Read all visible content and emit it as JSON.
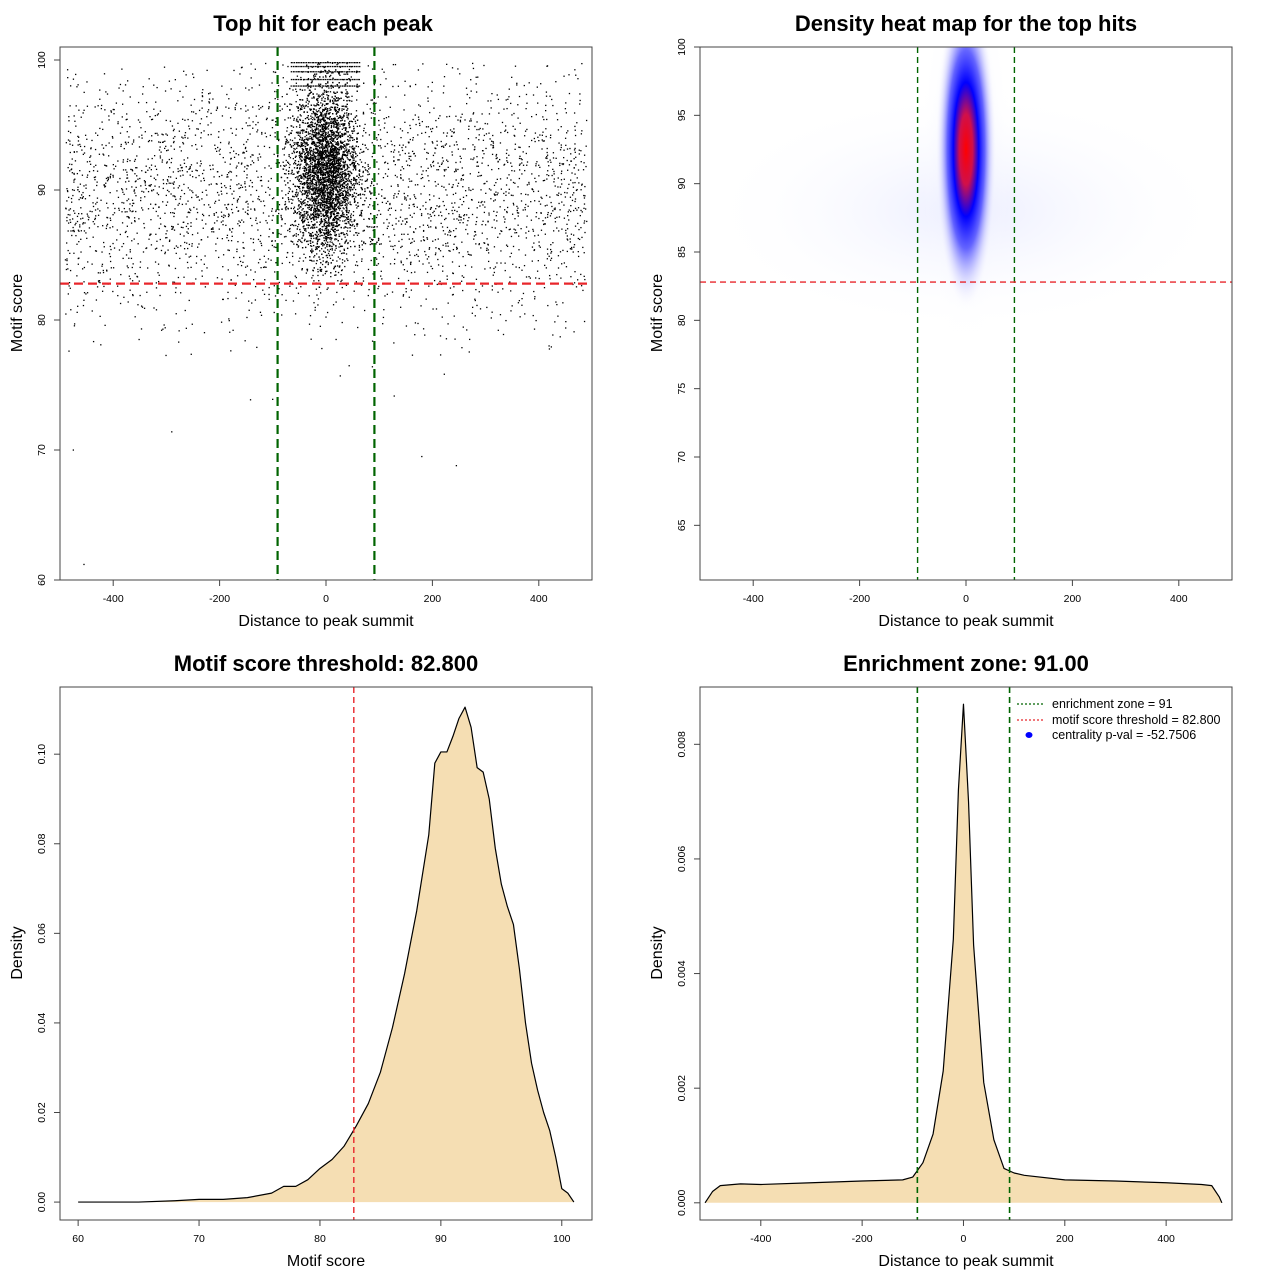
{
  "chart_data": [
    {
      "type": "scatter",
      "title": "Top hit for each peak",
      "xlabel": "Distance to peak summit",
      "ylabel": "Motif score",
      "xlim": [
        -500,
        500
      ],
      "ylim": [
        60,
        101
      ],
      "xticks": [
        -400,
        -200,
        0,
        200,
        400
      ],
      "yticks": [
        60,
        70,
        80,
        90,
        100
      ],
      "background": {
        "x_range": [
          -490,
          490
        ],
        "y_mean": 89.5,
        "y_sd": 4.6,
        "count": 3200
      },
      "central_cluster": {
        "x_mean": 0,
        "x_sd": 30,
        "y_mean": 91.5,
        "y_sd": 3.2,
        "count": 4500
      },
      "top_rows": [
        98.0,
        98.5,
        99.1,
        99.5,
        99.8
      ],
      "outliers": [
        {
          "x": -455,
          "y": 61.2
        },
        {
          "x": -475,
          "y": 70.0
        },
        {
          "x": 180,
          "y": 69.5
        },
        {
          "x": 245,
          "y": 68.8
        },
        {
          "x": -290,
          "y": 71.4
        }
      ],
      "vlines": [
        {
          "x": -91,
          "color": "#006400"
        },
        {
          "x": 91,
          "color": "#006400"
        }
      ],
      "hlines": [
        {
          "y": 82.8,
          "color": "#e8262b"
        }
      ]
    },
    {
      "type": "heatmap",
      "title": "Density heat map for the top hits",
      "xlabel": "Distance to peak summit",
      "ylabel": "Motif score",
      "xlim": [
        -500,
        500
      ],
      "ylim": [
        61,
        100
      ],
      "xticks": [
        -400,
        -200,
        0,
        200,
        400
      ],
      "yticks": [
        65,
        70,
        75,
        80,
        85,
        90,
        95,
        100
      ],
      "hotspot": {
        "x": 0,
        "y": 92.5,
        "x_spread": 30,
        "y_spread": 4.5
      },
      "colors": {
        "low": "#ffffff",
        "mid": "#0000ff",
        "high": "#ff0000"
      },
      "vlines": [
        {
          "x": -91,
          "color": "#006400"
        },
        {
          "x": 91,
          "color": "#006400"
        }
      ],
      "hlines": [
        {
          "y": 82.8,
          "color": "#e8262b"
        }
      ]
    },
    {
      "type": "area",
      "title": "Motif score threshold: 82.800",
      "xlabel": "Motif score",
      "ylabel": "Density",
      "xlim": [
        58.5,
        102.5
      ],
      "ylim": [
        -0.004,
        0.115
      ],
      "xticks": [
        60,
        70,
        80,
        90,
        100
      ],
      "yticks": [
        0.0,
        0.02,
        0.04,
        0.06,
        0.08,
        0.1
      ],
      "ytick_labels": [
        "0.00",
        "0.02",
        "0.04",
        "0.06",
        "0.08",
        "0.10"
      ],
      "fill": "#f5deb3",
      "x": [
        60,
        65,
        68,
        70,
        72,
        74,
        76,
        77,
        78,
        79,
        80,
        81,
        82,
        83,
        84,
        85,
        86,
        87,
        88,
        89,
        89.5,
        90,
        90.5,
        91,
        91.5,
        92,
        92.5,
        93,
        93.5,
        94,
        94.5,
        95,
        95.5,
        96,
        96.5,
        97,
        97.5,
        98,
        98.5,
        99,
        99.5,
        100,
        100.5,
        101
      ],
      "y": [
        0.0,
        0.0,
        0.0003,
        0.0006,
        0.0006,
        0.001,
        0.002,
        0.0035,
        0.0035,
        0.005,
        0.0075,
        0.0095,
        0.0125,
        0.017,
        0.022,
        0.029,
        0.039,
        0.051,
        0.065,
        0.082,
        0.098,
        0.1005,
        0.1005,
        0.104,
        0.108,
        0.1105,
        0.106,
        0.097,
        0.096,
        0.09,
        0.079,
        0.071,
        0.066,
        0.062,
        0.052,
        0.04,
        0.031,
        0.025,
        0.02,
        0.016,
        0.01,
        0.003,
        0.002,
        0.0
      ]
    },
    {
      "type": "area",
      "title": "Enrichment zone: 91.00",
      "xlabel": "Distance to peak summit",
      "ylabel": "Density",
      "xlim": [
        -520,
        530
      ],
      "ylim": [
        -0.0003,
        0.009
      ],
      "xticks": [
        -400,
        -200,
        0,
        200,
        400
      ],
      "yticks": [
        0.0,
        0.002,
        0.004,
        0.006,
        0.008
      ],
      "ytick_labels": [
        "0.000",
        "0.002",
        "0.004",
        "0.006",
        "0.008"
      ],
      "fill": "#f5deb3",
      "x": [
        -510,
        -495,
        -480,
        -440,
        -400,
        -300,
        -200,
        -120,
        -100,
        -80,
        -60,
        -40,
        -20,
        -10,
        0,
        10,
        20,
        40,
        60,
        80,
        100,
        120,
        200,
        300,
        400,
        470,
        490,
        505,
        510
      ],
      "y": [
        0.0,
        0.0002,
        0.0003,
        0.00033,
        0.00032,
        0.00035,
        0.00038,
        0.0004,
        0.00045,
        0.0007,
        0.0012,
        0.0023,
        0.0046,
        0.0072,
        0.0087,
        0.007,
        0.0045,
        0.0021,
        0.0011,
        0.0006,
        0.00052,
        0.00048,
        0.0004,
        0.00038,
        0.00035,
        0.00032,
        0.0003,
        0.0001,
        0.0
      ],
      "vlines": [
        {
          "x": -91,
          "color": "#006400"
        },
        {
          "x": 91,
          "color": "#006400"
        }
      ],
      "legend": {
        "position": "top-right",
        "entries": [
          {
            "label": "enrichment zone = 91",
            "color": "#006400",
            "style": "dotted-line"
          },
          {
            "label": "motif score threshold = 82.800",
            "color": "#e8262b",
            "style": "dotted-line"
          },
          {
            "label": "centrality p-val = -52.7506",
            "color": "#0000ff",
            "style": "point"
          }
        ]
      }
    }
  ]
}
